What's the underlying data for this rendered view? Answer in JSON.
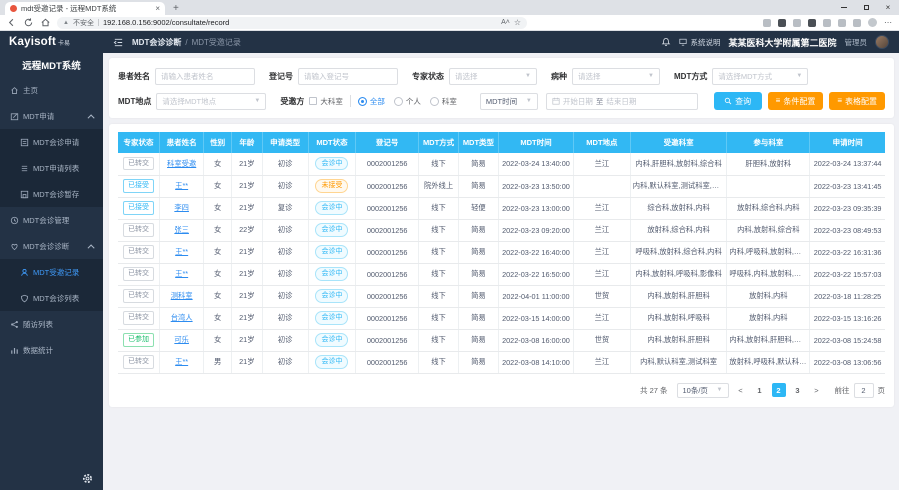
{
  "browser": {
    "tab_title": "mdt受邀记录 - 远程MDT系统",
    "new_tab_label": "+",
    "security_label": "不安全",
    "url": "192.168.0.156:9002/consultate/record"
  },
  "header": {
    "logo": "Kayisoft",
    "logo_suffix": "卡易",
    "breadcrumb": [
      "MDT会诊诊断",
      "MDT受邀记录"
    ],
    "breadcrumb_sep": "/",
    "system_help": "系统说明",
    "hospital": "某某医科大学附属第二医院",
    "role": "管理员"
  },
  "sidebar": {
    "title": "远程MDT系统",
    "items": [
      {
        "label": "主页",
        "icon": "home-icon",
        "level": 1
      },
      {
        "label": "MDT申请",
        "icon": "edit-icon",
        "level": 1,
        "expanded": true
      },
      {
        "label": "MDT会诊申请",
        "icon": "form-icon",
        "level": 2
      },
      {
        "label": "MDT申请列表",
        "icon": "list-icon",
        "level": 2
      },
      {
        "label": "MDT会诊暂存",
        "icon": "save-icon",
        "level": 2
      },
      {
        "label": "MDT会诊管理",
        "icon": "clock-icon",
        "level": 1
      },
      {
        "label": "MDT会诊诊断",
        "icon": "heart-icon",
        "level": 1,
        "expanded": true
      },
      {
        "label": "MDT受邀记录",
        "icon": "user-icon",
        "level": 2,
        "active": true
      },
      {
        "label": "MDT会诊列表",
        "icon": "shield-icon",
        "level": 2
      },
      {
        "label": "随访列表",
        "icon": "share-icon",
        "level": 1
      },
      {
        "label": "数据统计",
        "icon": "chart-icon",
        "level": 1
      }
    ]
  },
  "filters": {
    "patient_name": {
      "label": "患者姓名",
      "placeholder": "请输入患者姓名"
    },
    "register_no": {
      "label": "登记号",
      "placeholder": "请输入登记号"
    },
    "expert_status": {
      "label": "专家状态",
      "placeholder": "请选择"
    },
    "disease": {
      "label": "病种",
      "placeholder": "请选择"
    },
    "mdt_mode": {
      "label": "MDT方式",
      "placeholder": "请选择MDT方式"
    },
    "mdt_place": {
      "label": "MDT地点",
      "placeholder": "请选择MDT地点"
    },
    "invitee": {
      "label": "受邀方",
      "checkbox": "大科室",
      "radios": [
        "全部",
        "个人",
        "科室"
      ],
      "selected_radio": "全部"
    },
    "time_field_value": "MDT时间",
    "date_start_placeholder": "开始日期",
    "date_separator": "至",
    "date_end_placeholder": "结束日期",
    "search_button": "查询",
    "condition_button": "条件配置",
    "table_button": "表格配置"
  },
  "table": {
    "columns": [
      {
        "label": "专家状态",
        "key": "expert_status",
        "w": "5.4%"
      },
      {
        "label": "患者姓名",
        "key": "name",
        "w": "5.8%"
      },
      {
        "label": "性别",
        "key": "gender",
        "w": "3.6%"
      },
      {
        "label": "年龄",
        "key": "age",
        "w": "4.0%"
      },
      {
        "label": "申请类型",
        "key": "apply_type",
        "w": "6.0%"
      },
      {
        "label": "MDT状态",
        "key": "mdt_status",
        "w": "6.2%"
      },
      {
        "label": "登记号",
        "key": "reg_no",
        "w": "8.2%"
      },
      {
        "label": "MDT方式",
        "key": "mdt_mode",
        "w": "5.2%"
      },
      {
        "label": "MDT类型",
        "key": "mdt_type",
        "w": "5.2%"
      },
      {
        "label": "MDT时间",
        "key": "mdt_time",
        "w": "9.8%"
      },
      {
        "label": "MDT地点",
        "key": "mdt_place",
        "w": "7.4%"
      },
      {
        "label": "受邀科室",
        "key": "invited_depts",
        "w": "12.6%"
      },
      {
        "label": "参与科室",
        "key": "joined_depts",
        "w": "10.8%"
      },
      {
        "label": "申请时间",
        "key": "apply_time",
        "w": "9.8%"
      }
    ],
    "expert_status_styles": {
      "已转交": "gray",
      "已接受": "cyan",
      "已参加": "green"
    },
    "mdt_status_styles": {
      "会诊中": "cyan",
      "未接受": "orange"
    },
    "rows": [
      {
        "expert_status": "已转交",
        "name": "科室受邀",
        "gender": "女",
        "age": "21岁",
        "apply_type": "初诊",
        "mdt_status": "会诊中",
        "reg_no": "0002001256",
        "mdt_mode": "线下",
        "mdt_type": "简易",
        "mdt_time": "2022-03-24 13:40:00",
        "mdt_place": "兰江",
        "invited_depts": "内科,肝胆科,放射科,综合科",
        "joined_depts": "肝胆科,放射科",
        "apply_time": "2022-03-24 13:37:44"
      },
      {
        "expert_status": "已接受",
        "name": "王**",
        "gender": "女",
        "age": "21岁",
        "apply_type": "初诊",
        "mdt_status": "未接受",
        "reg_no": "0002001256",
        "mdt_mode": "院外线上",
        "mdt_type": "简易",
        "mdt_time": "2022-03-23 13:50:00",
        "mdt_place": "",
        "invited_depts": "内科,默认科室,测试科室,放射科",
        "joined_depts": "",
        "apply_time": "2022-03-23 13:41:45"
      },
      {
        "expert_status": "已接受",
        "name": "李四",
        "gender": "女",
        "age": "21岁",
        "apply_type": "复诊",
        "mdt_status": "会诊中",
        "reg_no": "0002001256",
        "mdt_mode": "线下",
        "mdt_type": "轻便",
        "mdt_time": "2022-03-23 13:00:00",
        "mdt_place": "兰江",
        "invited_depts": "综合科,放射科,内科",
        "joined_depts": "放射科,综合科,内科",
        "apply_time": "2022-03-23 09:35:39"
      },
      {
        "expert_status": "已转交",
        "name": "张三",
        "gender": "女",
        "age": "22岁",
        "apply_type": "初诊",
        "mdt_status": "会诊中",
        "reg_no": "0002001256",
        "mdt_mode": "线下",
        "mdt_type": "简易",
        "mdt_time": "2022-03-23 09:20:00",
        "mdt_place": "兰江",
        "invited_depts": "放射科,综合科,内科",
        "joined_depts": "内科,放射科,综合科",
        "apply_time": "2022-03-23 08:49:53"
      },
      {
        "expert_status": "已转交",
        "name": "王**",
        "gender": "女",
        "age": "21岁",
        "apply_type": "初诊",
        "mdt_status": "会诊中",
        "reg_no": "0002001256",
        "mdt_mode": "线下",
        "mdt_type": "简易",
        "mdt_time": "2022-03-22 16:40:00",
        "mdt_place": "兰江",
        "invited_depts": "呼吸科,放射科,综合科,内科",
        "joined_depts": "内科,呼吸科,放射科,综合科",
        "apply_time": "2022-03-22 16:31:36"
      },
      {
        "expert_status": "已转交",
        "name": "王**",
        "gender": "女",
        "age": "21岁",
        "apply_type": "初诊",
        "mdt_status": "会诊中",
        "reg_no": "0002001256",
        "mdt_mode": "线下",
        "mdt_type": "简易",
        "mdt_time": "2022-03-22 16:50:00",
        "mdt_place": "兰江",
        "invited_depts": "内科,放射科,呼吸科,影像科",
        "joined_depts": "呼吸科,内科,放射科,影像科",
        "apply_time": "2022-03-22 15:57:03"
      },
      {
        "expert_status": "已转交",
        "name": "测科室",
        "gender": "女",
        "age": "21岁",
        "apply_type": "初诊",
        "mdt_status": "会诊中",
        "reg_no": "0002001256",
        "mdt_mode": "线下",
        "mdt_type": "简易",
        "mdt_time": "2022-04-01 11:00:00",
        "mdt_place": "世贸",
        "invited_depts": "内科,放射科,肝胆科",
        "joined_depts": "放射科,内科",
        "apply_time": "2022-03-18 11:28:25"
      },
      {
        "expert_status": "已转交",
        "name": "台湾人",
        "gender": "女",
        "age": "21岁",
        "apply_type": "初诊",
        "mdt_status": "会诊中",
        "reg_no": "0002001256",
        "mdt_mode": "线下",
        "mdt_type": "简易",
        "mdt_time": "2022-03-15 14:00:00",
        "mdt_place": "兰江",
        "invited_depts": "内科,放射科,呼吸科",
        "joined_depts": "放射科,内科",
        "apply_time": "2022-03-15 13:16:26"
      },
      {
        "expert_status": "已参加",
        "name": "可乐",
        "gender": "女",
        "age": "21岁",
        "apply_type": "初诊",
        "mdt_status": "会诊中",
        "reg_no": "0002001256",
        "mdt_mode": "线下",
        "mdt_type": "简易",
        "mdt_time": "2022-03-08 16:00:00",
        "mdt_place": "世贸",
        "invited_depts": "内科,放射科,肝胆科",
        "joined_depts": "内科,放射科,肝胆科,测试科室",
        "apply_time": "2022-03-08 15:24:58"
      },
      {
        "expert_status": "已转交",
        "name": "王**",
        "gender": "男",
        "age": "21岁",
        "apply_type": "初诊",
        "mdt_status": "会诊中",
        "reg_no": "0002001256",
        "mdt_mode": "线下",
        "mdt_type": "简易",
        "mdt_time": "2022-03-08 14:10:00",
        "mdt_place": "兰江",
        "invited_depts": "内科,默认科室,测试科室",
        "joined_depts": "放射科,呼吸科,默认科室,测...",
        "apply_time": "2022-03-08 13:06:56"
      }
    ]
  },
  "pagination": {
    "total_label": "共 27 条",
    "page_size_label": "10条/页",
    "prev_label": "<",
    "next_label": ">",
    "pages": [
      "1",
      "2",
      "3"
    ],
    "current_page": "2",
    "goto_label": "前往",
    "goto_value": "2",
    "goto_unit": "页"
  },
  "colors": {
    "navy": "#233245",
    "table_header": "#32b8f3",
    "accent_cyan": "#2db7f5",
    "accent_orange": "#ff9900",
    "success_green": "#19be6b",
    "link_blue": "#2d8cf0"
  }
}
